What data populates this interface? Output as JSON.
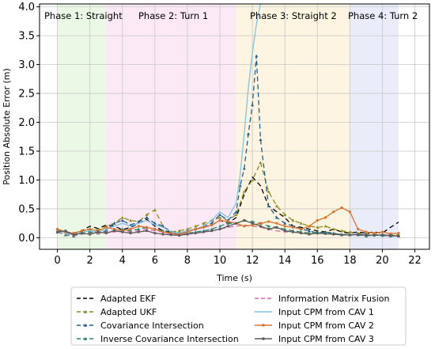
{
  "chart_data": {
    "type": "line",
    "title": "",
    "xlabel": "Time (s)",
    "ylabel": "Position Absolute Error (m)",
    "xlim": [
      -1.1,
      22.9
    ],
    "ylim": [
      -0.2,
      4.05
    ],
    "xticks": [
      0,
      2,
      4,
      6,
      8,
      10,
      12,
      14,
      16,
      18,
      20,
      22
    ],
    "yticks": [
      0.0,
      0.5,
      1.0,
      1.5,
      2.0,
      2.5,
      3.0,
      3.5,
      4.0
    ],
    "grid": true,
    "legend_position": "bottom-center",
    "phases": [
      {
        "label": "Phase 1: Straight",
        "start": 0,
        "end": 3,
        "color": "#d9f2d0"
      },
      {
        "label": "Phase 2: Turn 1",
        "start": 3,
        "end": 11,
        "color": "#f7d9ec"
      },
      {
        "label": "Phase 3: Straight 2",
        "start": 11,
        "end": 18,
        "color": "#fcebc8"
      },
      {
        "label": "Phase 4: Turn 2",
        "start": 18,
        "end": 21,
        "color": "#dadcf4"
      }
    ],
    "series": [
      {
        "name": "Adapted EKF",
        "color": "#000000",
        "dash": "6,4",
        "marker": "none",
        "x": [
          0,
          0.5,
          1,
          1.5,
          2,
          2.5,
          3,
          3.5,
          4,
          4.5,
          5,
          5.5,
          6,
          6.5,
          7,
          7.5,
          8,
          8.5,
          9,
          9.5,
          10,
          10.5,
          11,
          11.5,
          12,
          12.5,
          13,
          13.5,
          14,
          14.5,
          15,
          15.5,
          16,
          16.5,
          17,
          17.5,
          18,
          18.5,
          19,
          19.5,
          20,
          20.5,
          21
        ],
        "y": [
          0.12,
          0.1,
          0.05,
          0.12,
          0.2,
          0.16,
          0.22,
          0.2,
          0.14,
          0.18,
          0.25,
          0.32,
          0.2,
          0.12,
          0.1,
          0.08,
          0.12,
          0.15,
          0.18,
          0.22,
          0.3,
          0.25,
          0.35,
          0.75,
          1.05,
          0.9,
          0.55,
          0.45,
          0.35,
          0.2,
          0.18,
          0.15,
          0.12,
          0.1,
          0.15,
          0.1,
          0.08,
          0.1,
          0.08,
          0.1,
          0.08,
          0.18,
          0.27
        ]
      },
      {
        "name": "Adapted UKF",
        "color": "#8c8c1e",
        "dash": "6,4",
        "marker": "triangle",
        "x": [
          0,
          0.5,
          1,
          1.5,
          2,
          2.5,
          3,
          3.5,
          4,
          4.5,
          5,
          5.5,
          6,
          6.5,
          7,
          7.5,
          8,
          8.5,
          9,
          9.5,
          10,
          10.5,
          11,
          11.5,
          12,
          12.5,
          13,
          13.5,
          14,
          14.5,
          15,
          15.5,
          16,
          16.5,
          17,
          17.5,
          18,
          18.5,
          19,
          19.5,
          20,
          20.5,
          21
        ],
        "y": [
          0.15,
          0.1,
          0.08,
          0.12,
          0.15,
          0.14,
          0.2,
          0.25,
          0.35,
          0.3,
          0.28,
          0.4,
          0.48,
          0.2,
          0.1,
          0.12,
          0.15,
          0.2,
          0.25,
          0.3,
          0.35,
          0.3,
          0.4,
          0.8,
          1.0,
          1.3,
          0.8,
          0.55,
          0.4,
          0.3,
          0.25,
          0.2,
          0.18,
          0.2,
          0.15,
          0.12,
          0.1,
          0.08,
          0.07,
          0.06,
          0.05,
          0.05,
          0.05
        ]
      },
      {
        "name": "Covariance Intersection",
        "color": "#1f5f8b",
        "dash": "6,4",
        "marker": "triangle",
        "x": [
          0,
          0.5,
          1,
          1.5,
          2,
          2.5,
          3,
          3.5,
          4,
          4.5,
          5,
          5.5,
          6,
          6.5,
          7,
          7.5,
          8,
          8.5,
          9,
          9.5,
          10,
          10.5,
          11,
          11.25,
          11.5,
          11.75,
          12,
          12.25,
          12.5,
          13,
          13.5,
          14,
          14.5,
          15,
          15.5,
          16,
          16.5,
          17,
          17.5,
          18,
          18.5,
          19,
          19.5,
          20,
          20.5,
          21
        ],
        "y": [
          0.1,
          0.05,
          0.03,
          0.08,
          0.1,
          0.08,
          0.12,
          0.25,
          0.3,
          0.22,
          0.28,
          0.35,
          0.25,
          0.2,
          0.1,
          0.08,
          0.12,
          0.15,
          0.2,
          0.25,
          0.4,
          0.3,
          0.45,
          0.9,
          1.2,
          1.8,
          2.3,
          3.15,
          1.7,
          0.55,
          0.35,
          0.25,
          0.2,
          0.15,
          0.12,
          0.08,
          0.1,
          0.08,
          0.05,
          0.05,
          0.05,
          0.03,
          0.05,
          0.04,
          0.03,
          0.03
        ]
      },
      {
        "name": "Inverse Covariance Intersection",
        "color": "#1f8a70",
        "dash": "6,4",
        "marker": "triangle",
        "x": [
          0,
          0.5,
          1,
          1.5,
          2,
          2.5,
          3,
          3.5,
          4,
          4.5,
          5,
          5.5,
          6,
          6.5,
          7,
          7.5,
          8,
          8.5,
          9,
          9.5,
          10,
          10.5,
          11,
          11.5,
          12,
          12.5,
          13,
          13.5,
          14,
          14.5,
          15,
          15.5,
          16,
          16.5,
          17,
          17.5,
          18,
          18.5,
          19,
          19.5,
          20,
          20.5,
          21
        ],
        "y": [
          0.1,
          0.05,
          0.03,
          0.08,
          0.1,
          0.08,
          0.1,
          0.12,
          0.15,
          0.12,
          0.15,
          0.18,
          0.15,
          0.12,
          0.08,
          0.06,
          0.08,
          0.1,
          0.12,
          0.15,
          0.2,
          0.25,
          0.25,
          0.3,
          0.28,
          0.25,
          0.2,
          0.18,
          0.15,
          0.12,
          0.1,
          0.08,
          0.1,
          0.08,
          0.07,
          0.06,
          0.05,
          0.05,
          0.04,
          0.05,
          0.04,
          0.03,
          0.03
        ]
      },
      {
        "name": "Information Matrix Fusion",
        "color": "#d66fae",
        "dash": "6,4",
        "marker": "none",
        "x": [
          0,
          0.5,
          1,
          1.5,
          2,
          2.5,
          3,
          3.5,
          4,
          4.5,
          5,
          5.5,
          6,
          6.5,
          7,
          7.5,
          8,
          8.5,
          9,
          9.5,
          10,
          10.5,
          11,
          11.5,
          12,
          12.5,
          13,
          13.5,
          14,
          14.5,
          15,
          15.5,
          16,
          16.5,
          17,
          17.5,
          18,
          18.5,
          19,
          19.5,
          20,
          20.5,
          21
        ],
        "y": [
          0.1,
          0.06,
          0.03,
          0.06,
          0.08,
          0.07,
          0.1,
          0.1,
          0.12,
          0.1,
          0.12,
          0.15,
          0.12,
          0.1,
          0.06,
          0.05,
          0.07,
          0.08,
          0.1,
          0.12,
          0.15,
          0.18,
          0.2,
          0.22,
          0.2,
          0.18,
          0.15,
          0.12,
          0.1,
          0.1,
          0.08,
          0.07,
          0.08,
          0.07,
          0.06,
          0.05,
          0.05,
          0.05,
          0.04,
          0.05,
          0.04,
          0.03,
          0.03
        ]
      },
      {
        "name": "Input CPM from CAV 1",
        "color": "#7fc4e0",
        "dash": "",
        "marker": "none",
        "x": [
          0,
          0.5,
          1,
          1.5,
          2,
          2.5,
          3,
          3.5,
          4,
          4.5,
          5,
          5.5,
          6,
          6.5,
          7,
          7.5,
          8,
          8.5,
          9,
          9.5,
          10,
          10.5,
          11,
          11.25,
          11.5,
          11.75,
          12,
          12.25,
          12.5
        ],
        "y": [
          0.12,
          0.08,
          0.05,
          0.1,
          0.12,
          0.1,
          0.15,
          0.2,
          0.25,
          0.2,
          0.25,
          0.3,
          0.22,
          0.18,
          0.1,
          0.08,
          0.12,
          0.15,
          0.2,
          0.3,
          0.45,
          0.35,
          0.6,
          1.1,
          1.8,
          2.6,
          3.2,
          3.7,
          4.05
        ]
      },
      {
        "name": "Input CPM from CAV 2",
        "color": "#d9722e",
        "dash": "",
        "marker": "dot",
        "x": [
          0,
          0.5,
          1,
          1.5,
          2,
          2.5,
          3,
          3.5,
          4,
          4.5,
          5,
          5.5,
          6,
          6.5,
          7,
          7.5,
          8,
          8.5,
          9,
          9.5,
          10,
          10.5,
          11,
          11.5,
          12,
          12.5,
          13,
          13.5,
          14,
          14.5,
          15,
          15.5,
          16,
          16.5,
          17,
          17.5,
          18,
          18.5,
          19,
          19.5,
          20,
          20.5,
          21
        ],
        "y": [
          0.15,
          0.1,
          0.08,
          0.12,
          0.15,
          0.12,
          0.18,
          0.15,
          0.12,
          0.15,
          0.2,
          0.18,
          0.15,
          0.1,
          0.08,
          0.06,
          0.1,
          0.15,
          0.18,
          0.22,
          0.3,
          0.28,
          0.25,
          0.2,
          0.22,
          0.25,
          0.28,
          0.25,
          0.2,
          0.18,
          0.15,
          0.2,
          0.3,
          0.35,
          0.45,
          0.52,
          0.45,
          0.15,
          0.1,
          0.08,
          0.1,
          0.07,
          0.08
        ]
      },
      {
        "name": "Input CPM from CAV 3",
        "color": "#5a5a5a",
        "dash": "",
        "marker": "dot",
        "x": [
          0,
          0.5,
          1,
          1.5,
          2,
          2.5,
          3,
          3.5,
          4,
          4.5,
          5,
          5.5,
          6,
          6.5,
          7,
          7.5,
          8,
          8.5,
          9,
          9.5,
          10,
          10.5,
          11,
          11.5,
          12,
          12.5,
          13,
          13.5,
          14,
          14.5,
          15,
          15.5,
          16,
          16.5,
          17,
          17.5,
          18,
          18.5,
          19,
          19.5,
          20,
          20.5,
          21
        ],
        "y": [
          0.1,
          0.12,
          0.05,
          0.08,
          0.06,
          0.1,
          0.08,
          0.12,
          0.1,
          0.08,
          0.1,
          0.12,
          0.08,
          0.06,
          0.05,
          0.04,
          0.06,
          0.08,
          0.1,
          0.12,
          0.15,
          0.2,
          0.25,
          0.3,
          0.25,
          0.2,
          0.15,
          0.18,
          0.12,
          0.1,
          0.08,
          0.06,
          0.08,
          0.07,
          0.06,
          0.05,
          0.05,
          0.06,
          0.05,
          0.04,
          0.05,
          0.04,
          0.03
        ]
      }
    ]
  }
}
